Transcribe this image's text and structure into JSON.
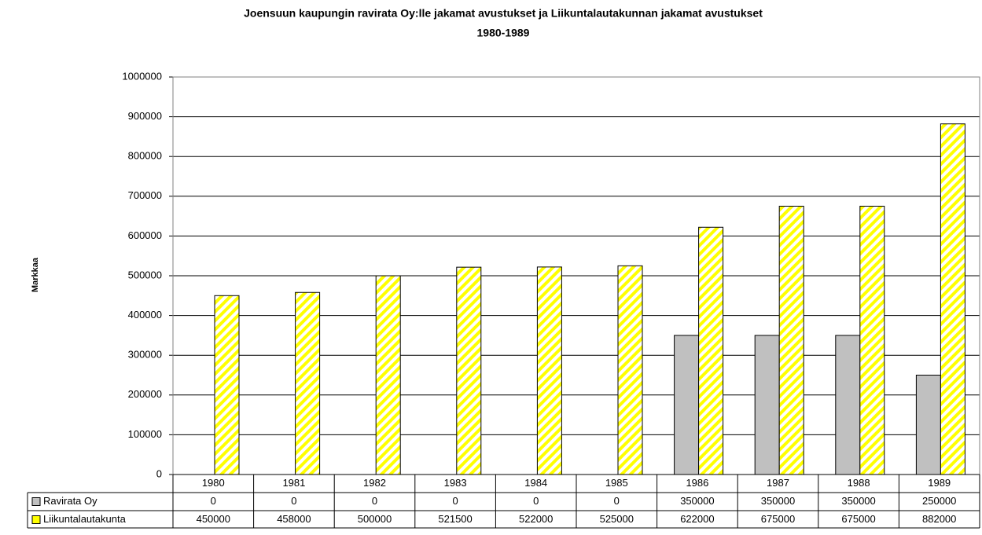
{
  "chart_data": {
    "type": "bar",
    "title": "Joensuun kaupungin ravirata Oy:lle jakamat avustukset ja Liikuntalautakunnan jakamat avustukset",
    "subtitle": "1980-1989",
    "y_label": "Markkaa",
    "categories": [
      "1980",
      "1981",
      "1982",
      "1983",
      "1984",
      "1985",
      "1986",
      "1987",
      "1988",
      "1989"
    ],
    "series": [
      {
        "name": "Ravirata Oy",
        "color": "#c0c0c0",
        "values": [
          0,
          0,
          0,
          0,
          0,
          0,
          350000,
          350000,
          350000,
          250000
        ]
      },
      {
        "name": "Liikuntalautakunta",
        "color": "#ffff00",
        "pattern": "diagonal-stripes",
        "values": [
          450000,
          458000,
          500000,
          521500,
          522000,
          525000,
          622000,
          675000,
          675000,
          882000
        ]
      }
    ],
    "ylim": [
      0,
      1000000
    ],
    "yticks": [
      0,
      100000,
      200000,
      300000,
      400000,
      500000,
      600000,
      700000,
      800000,
      900000,
      1000000
    ],
    "grid": true,
    "data_table": true
  }
}
